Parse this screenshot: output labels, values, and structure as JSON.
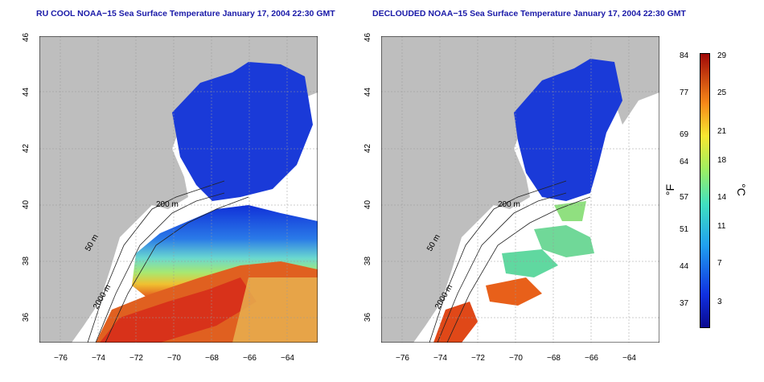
{
  "titles": {
    "left": "RU COOL NOAA−15 Sea Surface Temperature January 17, 2004 22:30 GMT",
    "right": "DECLOUDED NOAA−15 Sea Surface Temperature January 17, 2004 22:30 GMT"
  },
  "axes": {
    "x_ticks": [
      "−76",
      "−74",
      "−72",
      "−70",
      "−68",
      "−66",
      "−64"
    ],
    "y_ticks": [
      "46",
      "44",
      "42",
      "40",
      "38",
      "36"
    ]
  },
  "contours": {
    "c50": "50 m",
    "c200": "200 m",
    "c2000": "2000 m"
  },
  "colorbar": {
    "f_unit": "°F",
    "c_unit": "°C",
    "f_ticks": [
      "84",
      "77",
      "69",
      "64",
      "57",
      "51",
      "44",
      "37"
    ],
    "c_ticks": [
      "29",
      "25",
      "21",
      "18",
      "14",
      "11",
      "7",
      "3"
    ]
  },
  "colors": {
    "land": "#bebebe",
    "cold": "#1a3ad8",
    "warm": "#d8321a"
  }
}
